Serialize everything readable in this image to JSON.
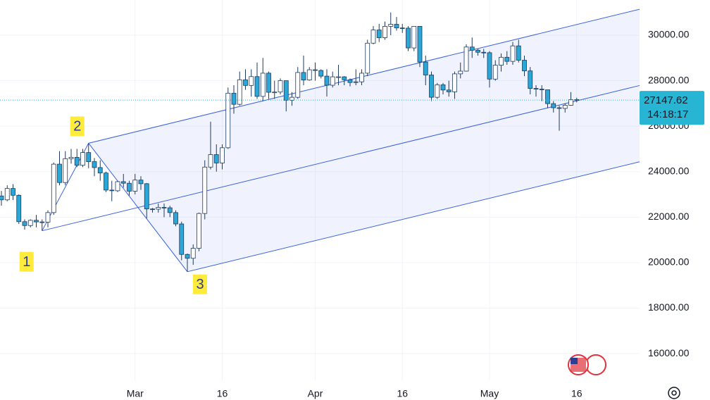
{
  "chart_data": {
    "type": "candlestick",
    "categories": [
      null,
      null,
      null,
      null,
      null,
      null,
      null,
      null,
      null,
      null,
      null,
      null,
      null,
      null,
      null,
      null,
      null,
      null,
      null,
      null,
      null,
      null,
      null,
      "Mar",
      null,
      null,
      null,
      null,
      null,
      null,
      null,
      null,
      null,
      null,
      null,
      null,
      null,
      null,
      "16",
      null,
      null,
      null,
      null,
      null,
      null,
      null,
      null,
      null,
      null,
      null,
      null,
      null,
      null,
      null,
      "Apr",
      null,
      null,
      null,
      null,
      null,
      null,
      null,
      null,
      null,
      null,
      null,
      null,
      null,
      null,
      "16",
      null,
      null,
      null,
      null,
      null,
      null,
      null,
      null,
      null,
      null,
      null,
      null,
      null,
      null,
      "May",
      null,
      null,
      null,
      null,
      null,
      null,
      null,
      null,
      null,
      null,
      null,
      null,
      null,
      null,
      "16"
    ],
    "ohlc": {
      "open": [
        22930,
        22760,
        23260,
        22960,
        21800,
        21630,
        21860,
        21790,
        21780,
        22200,
        24330,
        23520,
        24570,
        24630,
        24280,
        24840,
        24440,
        24180,
        23940,
        23190,
        23160,
        23560,
        23490,
        23140,
        23630,
        23470,
        22360,
        22350,
        22430,
        22410,
        22200,
        21700,
        20360,
        20190,
        20630,
        22160,
        24200,
        24750,
        24380,
        25050,
        27450,
        26960,
        28040,
        27790,
        28180,
        27310,
        28330,
        27490,
        27500,
        28000,
        27140,
        27270,
        28360,
        28030,
        28480,
        28450,
        28200,
        27800,
        28170,
        28170,
        28040,
        27920,
        27950,
        28330,
        29650,
        30230,
        29890,
        30390,
        30480,
        30320,
        30310,
        29440,
        30390,
        28820,
        28250,
        27270,
        27820,
        27590,
        27510,
        28300,
        28420,
        29480,
        29340,
        29250,
        29230,
        28070,
        28680,
        29030,
        28850,
        29530,
        28900,
        28430,
        27660,
        27630,
        27600,
        26990,
        26810,
        26780,
        26920,
        27170
      ],
      "high": [
        23150,
        23400,
        23450,
        23000,
        21900,
        21900,
        22100,
        21900,
        22300,
        24400,
        24900,
        24900,
        25000,
        25000,
        25000,
        25250,
        24600,
        24500,
        24000,
        23600,
        23600,
        23900,
        23600,
        23900,
        23800,
        23500,
        22400,
        22600,
        22600,
        22500,
        22300,
        21800,
        20400,
        20800,
        22200,
        24500,
        26200,
        25200,
        25200,
        27700,
        27800,
        28400,
        28500,
        28500,
        28800,
        29000,
        28400,
        28000,
        28100,
        28000,
        27500,
        28600,
        29100,
        28600,
        28800,
        28500,
        28500,
        28400,
        28700,
        28200,
        28100,
        28500,
        28500,
        29800,
        30400,
        30500,
        30600,
        31000,
        30800,
        30500,
        30400,
        30400,
        30400,
        29100,
        28400,
        27900,
        27900,
        28000,
        28400,
        28800,
        29600,
        29900,
        29400,
        29400,
        29300,
        28900,
        29200,
        29300,
        29700,
        29800,
        29100,
        28600,
        27800,
        27800,
        27600,
        27100,
        26900,
        27000,
        27500,
        27250
      ],
      "low": [
        22500,
        22700,
        22750,
        21700,
        21450,
        21550,
        21550,
        21400,
        21550,
        22100,
        23400,
        23400,
        24350,
        24200,
        24200,
        24150,
        23800,
        23600,
        23100,
        22700,
        23100,
        23300,
        22950,
        23000,
        23200,
        21950,
        22200,
        22200,
        22000,
        22000,
        21600,
        20100,
        19600,
        19900,
        20500,
        21900,
        24100,
        24000,
        24100,
        25000,
        26550,
        26900,
        27600,
        27300,
        27200,
        27100,
        27200,
        27200,
        27400,
        26650,
        26900,
        27200,
        27800,
        28000,
        28000,
        28100,
        27300,
        27700,
        27800,
        27800,
        27750,
        27800,
        27800,
        28200,
        29600,
        29700,
        29800,
        30000,
        30200,
        30100,
        29300,
        29300,
        28600,
        27800,
        27100,
        27200,
        27400,
        27300,
        27200,
        28100,
        28400,
        29000,
        29100,
        29000,
        27700,
        28000,
        28400,
        28700,
        28700,
        28800,
        28200,
        27400,
        27300,
        27100,
        26800,
        26600,
        25800,
        26600,
        26900,
        27050
      ],
      "close": [
        22760,
        23260,
        22960,
        21800,
        21630,
        21860,
        21790,
        21780,
        22200,
        24330,
        23520,
        24570,
        24630,
        24280,
        24840,
        24440,
        24180,
        23940,
        23190,
        23160,
        23560,
        23490,
        23140,
        23630,
        23470,
        22360,
        22350,
        22430,
        22410,
        22200,
        21700,
        20360,
        20190,
        20630,
        22160,
        24200,
        24750,
        24380,
        25050,
        27450,
        26960,
        28040,
        27790,
        28180,
        27310,
        28330,
        27490,
        27500,
        28000,
        27140,
        27270,
        28360,
        28030,
        28480,
        28450,
        28200,
        27800,
        28170,
        28170,
        28040,
        27920,
        27950,
        28330,
        29650,
        30230,
        29890,
        30390,
        30480,
        30320,
        30310,
        29440,
        30390,
        28820,
        28250,
        27270,
        27820,
        27590,
        27510,
        28300,
        28420,
        29480,
        29340,
        29250,
        29230,
        28070,
        28680,
        29030,
        28850,
        29530,
        28900,
        28430,
        27660,
        27630,
        27600,
        26990,
        26810,
        26780,
        26920,
        27170,
        27148
      ]
    },
    "up_color": "#ffffff",
    "down_color": "#2aa7d6",
    "border_color": "#1e3a5f",
    "ylim": [
      14825,
      31548
    ],
    "yticks": [
      {
        "value": 16000,
        "label": "16000.00"
      },
      {
        "value": 18000,
        "label": "18000.00"
      },
      {
        "value": 20000,
        "label": "20000.00"
      },
      {
        "value": 22000,
        "label": "22000.00"
      },
      {
        "value": 24000,
        "label": "24000.00"
      },
      {
        "value": 26000,
        "label": "26000.00"
      },
      {
        "value": 28000,
        "label": "28000.00"
      },
      {
        "value": 30000,
        "label": "30000.00"
      }
    ],
    "grid": true,
    "pitchfork": {
      "color": "#3b63e0",
      "points": [
        {
          "label": "1",
          "category_index": 7,
          "value": 21400
        },
        {
          "label": "2",
          "category_index": 15,
          "value": 25250
        },
        {
          "label": "3",
          "category_index": 32,
          "value": 19600
        }
      ]
    },
    "last_price": 27147.62,
    "last_price_color": "#27b5d3",
    "countdown": "14:18:17"
  }
}
